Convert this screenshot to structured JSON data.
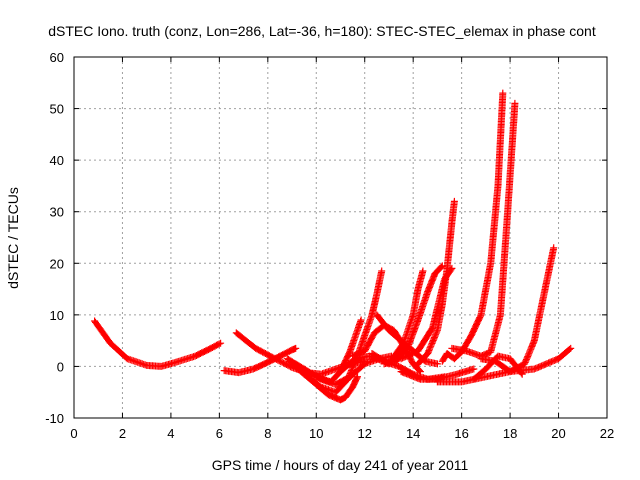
{
  "chart_data": {
    "type": "scatter",
    "title": "dSTEC Iono. truth (conz, Lon=286, Lat=-36, h=180): STEC-STEC_elemax in phase cont",
    "xlabel": "GPS time / hours of day 241 of year 2011",
    "ylabel": "dSTEC  / TECUs",
    "xlim": [
      0,
      22
    ],
    "ylim": [
      -10,
      60
    ],
    "x_ticks": [
      "0",
      "2",
      "4",
      "6",
      "8",
      "10",
      "12",
      "14",
      "16",
      "18",
      "20",
      "22"
    ],
    "y_ticks": [
      "-10",
      "0",
      "10",
      "20",
      "30",
      "40",
      "50",
      "60"
    ],
    "grid": true,
    "marker": "+",
    "color": "#ff0000",
    "series": [
      {
        "x": [
          0.85,
          1.5,
          2.2,
          3.0,
          3.6,
          4.2,
          5.0,
          5.6,
          6.05
        ],
        "y": [
          8.8,
          4.5,
          1.5,
          0.2,
          0.0,
          0.8,
          2.0,
          3.4,
          4.5
        ]
      },
      {
        "x": [
          6.2,
          6.8,
          7.4,
          8.0,
          8.5,
          9.0,
          9.15
        ],
        "y": [
          -0.8,
          -1.2,
          -0.5,
          0.8,
          2.0,
          3.2,
          3.5
        ]
      },
      {
        "x": [
          6.7,
          7.5,
          8.3,
          9.0,
          9.6,
          10.2,
          10.8,
          11.4,
          12.0
        ],
        "y": [
          6.5,
          3.5,
          1.5,
          -0.2,
          -1.2,
          -1.5,
          -0.5,
          0.5,
          1.0
        ]
      },
      {
        "x": [
          8.8,
          9.5,
          10.2,
          10.8,
          11.4,
          12.0,
          12.6,
          13.1
        ],
        "y": [
          1.5,
          -0.5,
          -2.5,
          -3.5,
          -2.0,
          0.5,
          1.5,
          2.0
        ]
      },
      {
        "x": [
          9.0,
          9.5,
          10.0,
          10.5,
          11.0,
          11.2,
          11.5,
          11.7
        ],
        "y": [
          0.5,
          -1.5,
          -3.5,
          -5.5,
          -6.5,
          -6.0,
          -4.0,
          -2.0
        ]
      },
      {
        "x": [
          9.5,
          10.2,
          10.8,
          11.3,
          11.7,
          12.0,
          12.3,
          12.5,
          12.7
        ],
        "y": [
          -1.5,
          -4.0,
          -5.0,
          -2.5,
          2.0,
          6.0,
          10.0,
          14.0,
          18.5
        ]
      },
      {
        "x": [
          10.0,
          10.6,
          11.0,
          11.4,
          11.7,
          11.85
        ],
        "y": [
          -2.0,
          -3.0,
          -1.0,
          3.0,
          7.0,
          9.0
        ]
      },
      {
        "x": [
          11.0,
          11.6,
          12.2,
          12.8,
          13.4,
          14.0,
          14.6,
          15.3
        ],
        "y": [
          -1.0,
          1.5,
          2.0,
          1.0,
          0.0,
          -1.5,
          -2.5,
          -2.0
        ]
      },
      {
        "x": [
          11.5,
          12.0,
          12.4,
          12.8,
          13.2,
          13.6,
          14.0,
          14.3
        ],
        "y": [
          2.0,
          3.0,
          6.5,
          8.0,
          7.0,
          4.0,
          0.5,
          -1.0
        ]
      },
      {
        "x": [
          12.3,
          13.0,
          13.6,
          14.0,
          14.2,
          14.4
        ],
        "y": [
          2.5,
          0.5,
          4.5,
          10.0,
          15.0,
          18.5
        ]
      },
      {
        "x": [
          12.8,
          13.3,
          13.8,
          14.2,
          14.6,
          14.9,
          15.2
        ],
        "y": [
          0.5,
          1.0,
          4.0,
          9.0,
          14.5,
          18.0,
          19.5
        ]
      },
      {
        "x": [
          12.5,
          13.0,
          13.5,
          14.0,
          14.5,
          15.0
        ],
        "y": [
          10.0,
          7.0,
          5.0,
          3.0,
          1.0,
          0.5
        ]
      },
      {
        "x": [
          14.2,
          14.6,
          15.0,
          15.2,
          15.4,
          15.6,
          15.7
        ],
        "y": [
          0.5,
          2.5,
          7.0,
          12.0,
          19.0,
          28.0,
          32.0
        ]
      },
      {
        "x": [
          15.2,
          15.4,
          15.7,
          16.0,
          16.4,
          16.8,
          17.2,
          17.5,
          17.7
        ],
        "y": [
          1.0,
          2.5,
          1.5,
          2.8,
          6.0,
          10.0,
          20.0,
          35.0,
          53.0
        ]
      },
      {
        "x": [
          13.5,
          14.2,
          14.8,
          15.3,
          15.6
        ],
        "y": [
          1.5,
          3.0,
          7.5,
          17.0,
          19.0
        ]
      },
      {
        "x": [
          15.6,
          16.2,
          16.8,
          17.2,
          17.6,
          17.9,
          18.2
        ],
        "y": [
          3.5,
          3.0,
          2.0,
          2.8,
          10.0,
          30.0,
          51.0
        ]
      },
      {
        "x": [
          16.8,
          17.4,
          18.0,
          18.6,
          19.0,
          19.4,
          19.8
        ],
        "y": [
          1.5,
          1.0,
          -1.0,
          0.5,
          5.0,
          14.0,
          23.0
        ]
      },
      {
        "x": [
          15.0,
          16.0,
          17.0,
          18.0,
          19.0,
          20.0,
          20.5
        ],
        "y": [
          -3.0,
          -3.0,
          -2.0,
          -1.0,
          -0.5,
          1.5,
          3.5
        ]
      },
      {
        "x": [
          16.5,
          17.0,
          17.5,
          18.0,
          18.5
        ],
        "y": [
          -2.5,
          -0.5,
          2.0,
          1.5,
          -1.5
        ]
      },
      {
        "x": [
          13.5,
          14.3,
          15.0,
          15.8,
          16.5
        ],
        "y": [
          -1.0,
          -2.5,
          -2.5,
          -1.5,
          -0.5
        ]
      }
    ]
  }
}
